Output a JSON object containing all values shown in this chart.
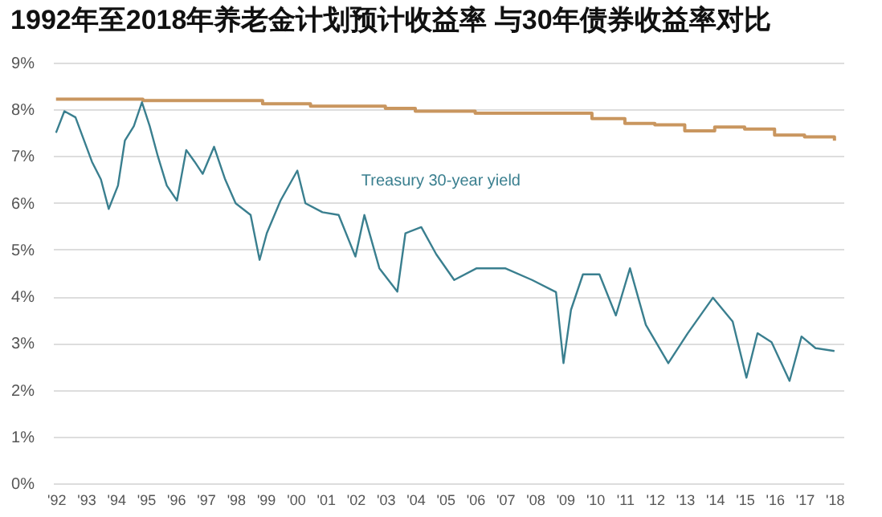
{
  "chart_data": {
    "type": "line",
    "title": "1992年至2018年养老金计划预计收益率 与30年债券收益率对比",
    "xlim": [
      1991.9,
      2018.3
    ],
    "xticks": [
      {
        "value": 1992,
        "label": "'92"
      },
      {
        "value": 1993,
        "label": "'93"
      },
      {
        "value": 1994,
        "label": "'94"
      },
      {
        "value": 1995,
        "label": "'95"
      },
      {
        "value": 1996,
        "label": "'96"
      },
      {
        "value": 1997,
        "label": "'97"
      },
      {
        "value": 1998,
        "label": "'98"
      },
      {
        "value": 1999,
        "label": "'99"
      },
      {
        "value": 2000,
        "label": "'00"
      },
      {
        "value": 2001,
        "label": "'01"
      },
      {
        "value": 2002,
        "label": "'02"
      },
      {
        "value": 2003,
        "label": "'03"
      },
      {
        "value": 2004,
        "label": "'04"
      },
      {
        "value": 2005,
        "label": "'05"
      },
      {
        "value": 2006,
        "label": "'06"
      },
      {
        "value": 2007,
        "label": "'07"
      },
      {
        "value": 2008,
        "label": "'08"
      },
      {
        "value": 2009,
        "label": "'09"
      },
      {
        "value": 2010,
        "label": "'10"
      },
      {
        "value": 2011,
        "label": "'11"
      },
      {
        "value": 2012,
        "label": "'12"
      },
      {
        "value": 2013,
        "label": "'13"
      },
      {
        "value": 2014,
        "label": "'14"
      },
      {
        "value": 2015,
        "label": "'15"
      },
      {
        "value": 2016,
        "label": "'16"
      },
      {
        "value": 2017,
        "label": "'17"
      },
      {
        "value": 2018,
        "label": "'18"
      }
    ],
    "ylim": [
      0,
      9
    ],
    "yticks": [
      {
        "value": 0,
        "label": "0%"
      },
      {
        "value": 1,
        "label": "1%"
      },
      {
        "value": 2,
        "label": "2%"
      },
      {
        "value": 3,
        "label": "3%"
      },
      {
        "value": 4,
        "label": "4%"
      },
      {
        "value": 5,
        "label": "5%"
      },
      {
        "value": 6,
        "label": "6%"
      },
      {
        "value": 7,
        "label": "7%"
      },
      {
        "value": 8,
        "label": "8%"
      },
      {
        "value": 9,
        "label": "9%"
      }
    ],
    "grid": "y",
    "series": [
      {
        "type": "step",
        "color": "#c9965f",
        "x": [
          1992.0,
          1994.9,
          1998.9,
          2000.5,
          2003.0,
          2004.0,
          2006.0,
          2009.9,
          2011.0,
          2012.0,
          2013.0,
          2014.0,
          2015.0,
          2016.0,
          2017.0,
          2018.0
        ],
        "values": [
          8.22,
          8.19,
          8.12,
          8.07,
          8.02,
          7.96,
          7.92,
          7.8,
          7.7,
          7.67,
          7.54,
          7.62,
          7.58,
          7.45,
          7.41,
          7.33
        ]
      },
      {
        "name": "Treasury 30-year yield",
        "color": "#3a7f8f",
        "x": [
          1992.0,
          1992.28,
          1992.65,
          1993.2,
          1993.5,
          1993.76,
          1994.07,
          1994.3,
          1994.6,
          1994.87,
          1995.13,
          1995.4,
          1995.7,
          1996.04,
          1996.35,
          1996.63,
          1996.9,
          1997.28,
          1997.65,
          1998.0,
          1998.5,
          1998.8,
          1999.04,
          1999.5,
          2000.06,
          2000.33,
          2000.9,
          2001.44,
          2002.0,
          2002.3,
          2002.8,
          2003.4,
          2003.67,
          2004.2,
          2004.7,
          2005.3,
          2006.05,
          2007.0,
          2007.9,
          2008.7,
          2008.95,
          2009.2,
          2009.6,
          2010.15,
          2010.7,
          2011.17,
          2011.7,
          2012.45,
          2013.1,
          2013.94,
          2014.6,
          2015.06,
          2015.43,
          2015.9,
          2016.5,
          2016.9,
          2017.37,
          2018.0
        ],
        "values": [
          7.5,
          7.96,
          7.83,
          6.88,
          6.5,
          5.87,
          6.37,
          7.33,
          7.64,
          8.15,
          7.64,
          7.0,
          6.37,
          6.05,
          7.13,
          6.88,
          6.62,
          7.2,
          6.5,
          5.99,
          5.74,
          4.78,
          5.35,
          6.05,
          6.69,
          5.99,
          5.8,
          5.74,
          4.85,
          5.74,
          4.6,
          4.1,
          5.35,
          5.48,
          4.9,
          4.35,
          4.6,
          4.6,
          4.35,
          4.09,
          2.57,
          3.71,
          4.47,
          4.47,
          3.59,
          4.6,
          3.39,
          2.57,
          3.21,
          3.97,
          3.46,
          2.26,
          3.21,
          3.02,
          2.19,
          3.14,
          2.89,
          2.83
        ]
      }
    ]
  }
}
